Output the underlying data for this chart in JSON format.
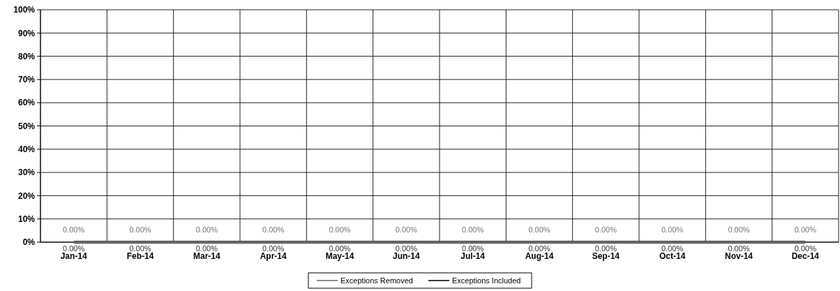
{
  "chart_data": {
    "type": "line",
    "categories": [
      "Jan-14",
      "Feb-14",
      "Mar-14",
      "Apr-14",
      "May-14",
      "Jun-14",
      "Jul-14",
      "Aug-14",
      "Sep-14",
      "Oct-14",
      "Nov-14",
      "Dec-14"
    ],
    "series": [
      {
        "name": "Exceptions Removed",
        "color": "#8c8c8c",
        "values": [
          0,
          0,
          0,
          0,
          0,
          0,
          0,
          0,
          0,
          0,
          0,
          0
        ],
        "value_labels": [
          "0.00%",
          "0.00%",
          "0.00%",
          "0.00%",
          "0.00%",
          "0.00%",
          "0.00%",
          "0.00%",
          "0.00%",
          "0.00%",
          "0.00%",
          "0.00%"
        ]
      },
      {
        "name": "Exceptions Included",
        "color": "#3a3a3a",
        "values": [
          0,
          0,
          0,
          0,
          0,
          0,
          0,
          0,
          0,
          0,
          0,
          0
        ],
        "value_labels": [
          "0.00%",
          "0.00%",
          "0.00%",
          "0.00%",
          "0.00%",
          "0.00%",
          "0.00%",
          "0.00%",
          "0.00%",
          "0.00%",
          "0.00%",
          "0.00%"
        ]
      }
    ],
    "ylim": [
      0,
      1
    ],
    "yticks": [
      {
        "value": 0,
        "label": "0%"
      },
      {
        "value": 0.1,
        "label": "10%"
      },
      {
        "value": 0.2,
        "label": "20%"
      },
      {
        "value": 0.3,
        "label": "30%"
      },
      {
        "value": 0.4,
        "label": "40%"
      },
      {
        "value": 0.5,
        "label": "50%"
      },
      {
        "value": 0.6,
        "label": "60%"
      },
      {
        "value": 0.7,
        "label": "70%"
      },
      {
        "value": 0.8,
        "label": "80%"
      },
      {
        "value": 0.9,
        "label": "90%"
      },
      {
        "value": 1,
        "label": "100%"
      }
    ],
    "grid": true,
    "legend": "bottom",
    "marker": "none",
    "line_style": "solid"
  }
}
